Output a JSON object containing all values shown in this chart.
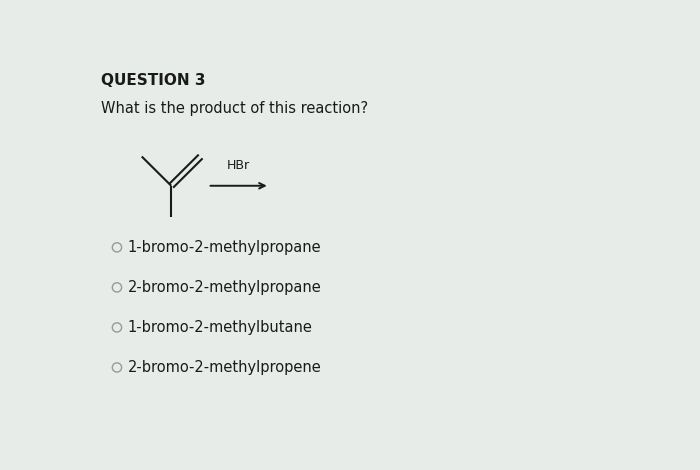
{
  "title": "QUESTION 3",
  "question": "What is the product of this reaction?",
  "reagent": "HBr",
  "options": [
    "1-bromo-2-methylpropane",
    "2-bromo-2-methylpropane",
    "1-bromo-2-methylbutane",
    "2-bromo-2-methylpropene"
  ],
  "background_color": "#e8ece8",
  "text_color": "#1a1a1a",
  "title_fontsize": 11,
  "question_fontsize": 10.5,
  "option_fontsize": 10.5,
  "reagent_fontsize": 9,
  "circle_color": "#999999"
}
